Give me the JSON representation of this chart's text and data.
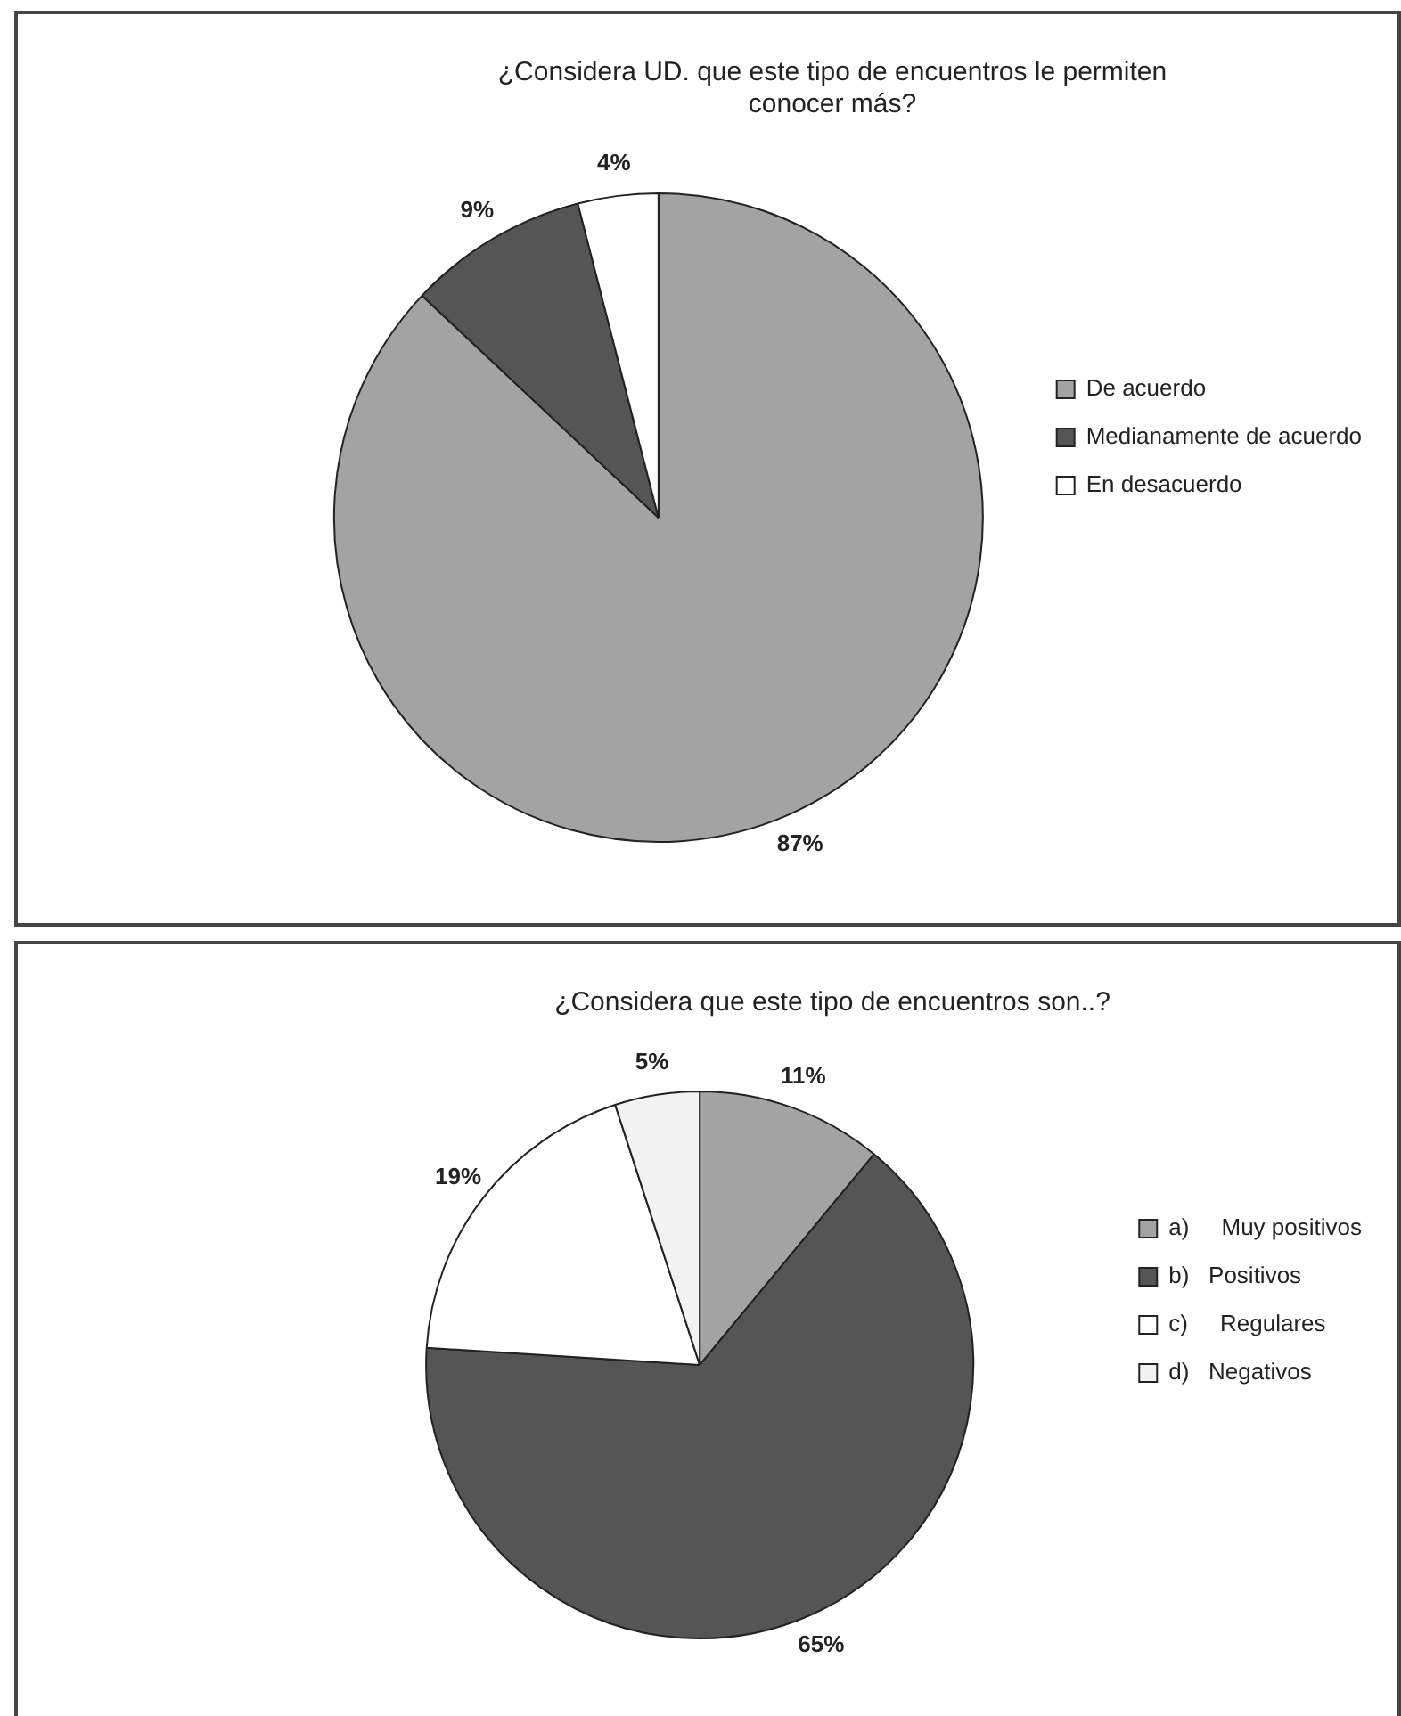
{
  "chart_data": [
    {
      "type": "pie",
      "title": [
        "¿Considera UD. que este tipo de encuentros le permiten",
        "conocer más?"
      ],
      "categories": [
        "De acuerdo",
        "Medianamente de acuerdo",
        "En desacuerdo"
      ],
      "values": [
        87,
        9,
        4
      ],
      "value_labels": [
        "87%",
        "9%",
        "4%"
      ],
      "colors": [
        "#a3a3a3",
        "#555555",
        "#ffffff"
      ],
      "legend": "right"
    },
    {
      "type": "pie",
      "title": "¿Considera que este tipo de encuentros son..?",
      "categories": [
        "a)     Muy positivos",
        "b)   Positivos",
        "c)     Regulares",
        "d)   Negativos"
      ],
      "values": [
        11,
        65,
        19,
        5
      ],
      "value_labels": [
        "11%",
        "65%",
        "19%",
        "5%"
      ],
      "colors": [
        "#a3a3a3",
        "#555555",
        "#ffffff",
        "#f2f2f2"
      ],
      "legend": "right"
    }
  ]
}
